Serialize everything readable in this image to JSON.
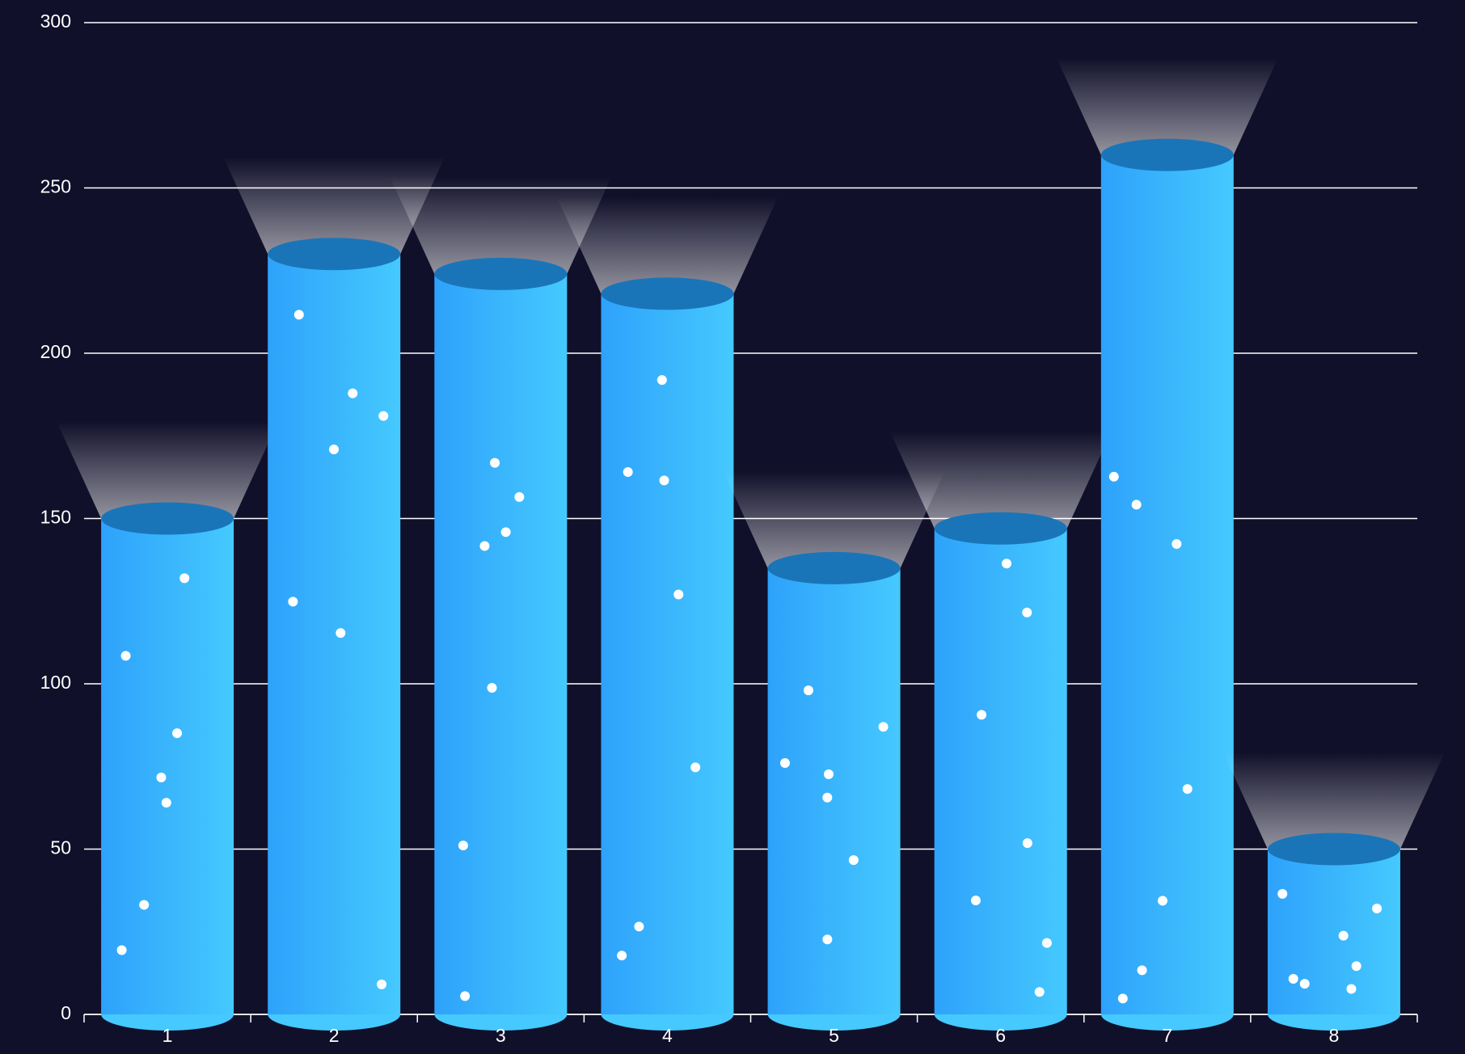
{
  "chart_data": {
    "type": "bar",
    "categories": [
      "1",
      "2",
      "3",
      "4",
      "5",
      "6",
      "7",
      "8"
    ],
    "values": [
      150,
      230,
      224,
      218,
      135,
      147,
      260,
      50
    ],
    "color": "#37b3fd",
    "ylim": [
      0,
      300
    ],
    "yticks": [
      0,
      50,
      100,
      150,
      200,
      250,
      300
    ],
    "grid": true
  }
}
